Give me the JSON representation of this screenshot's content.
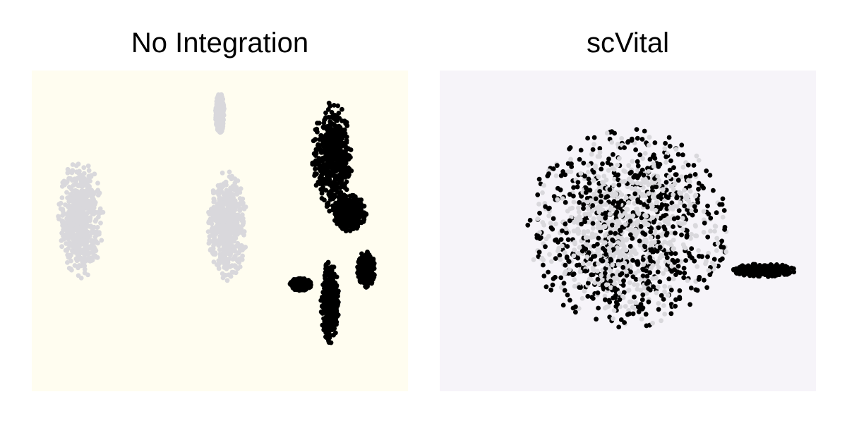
{
  "chart_data": [
    {
      "type": "scatter",
      "title": "No Integration",
      "xlabel": "",
      "ylabel": "",
      "axes_visible": false,
      "grid": false,
      "legend": "none",
      "background_color": "#fffdf0",
      "series": [
        {
          "color": "#d9d8dc",
          "point_count_estimate": 2600
        },
        {
          "color": "#000000",
          "point_count_estimate": 2000
        }
      ],
      "clusters": [
        {
          "series": 0,
          "center": [
            -3.6,
            0.4
          ],
          "spread": [
            0.45,
            1.15
          ]
        },
        {
          "series": 0,
          "center": [
            -0.6,
            0.25
          ],
          "spread": [
            0.4,
            1.05
          ]
        },
        {
          "series": 0,
          "center": [
            -0.75,
            2.45
          ],
          "spread": [
            0.09,
            0.4
          ]
        },
        {
          "series": 1,
          "center": [
            1.55,
            1.6
          ],
          "spread": [
            0.4,
            1.05
          ]
        },
        {
          "series": 1,
          "center": [
            1.9,
            0.5
          ],
          "spread": [
            0.35,
            0.35
          ]
        },
        {
          "series": 1,
          "center": [
            1.5,
            -1.25
          ],
          "spread": [
            0.18,
            0.8
          ]
        },
        {
          "series": 1,
          "center": [
            2.25,
            -0.6
          ],
          "spread": [
            0.18,
            0.35
          ]
        },
        {
          "series": 1,
          "center": [
            0.9,
            -0.9
          ],
          "spread": [
            0.22,
            0.12
          ]
        }
      ]
    },
    {
      "type": "scatter",
      "title": "scVital",
      "xlabel": "",
      "ylabel": "",
      "axes_visible": false,
      "grid": false,
      "legend": "none",
      "background_color": "#f6f4f9",
      "series": [
        {
          "color": "#d9d8dc",
          "point_count_estimate": 2600
        },
        {
          "color": "#000000",
          "point_count_estimate": 2600
        }
      ],
      "clusters": [
        {
          "series": "mixed",
          "center": [
            0.0,
            0.0
          ],
          "spread": [
            1.9,
            1.85
          ]
        },
        {
          "series": 1,
          "center": [
            2.6,
            -0.8
          ],
          "spread": [
            0.6,
            0.12
          ]
        }
      ]
    }
  ]
}
